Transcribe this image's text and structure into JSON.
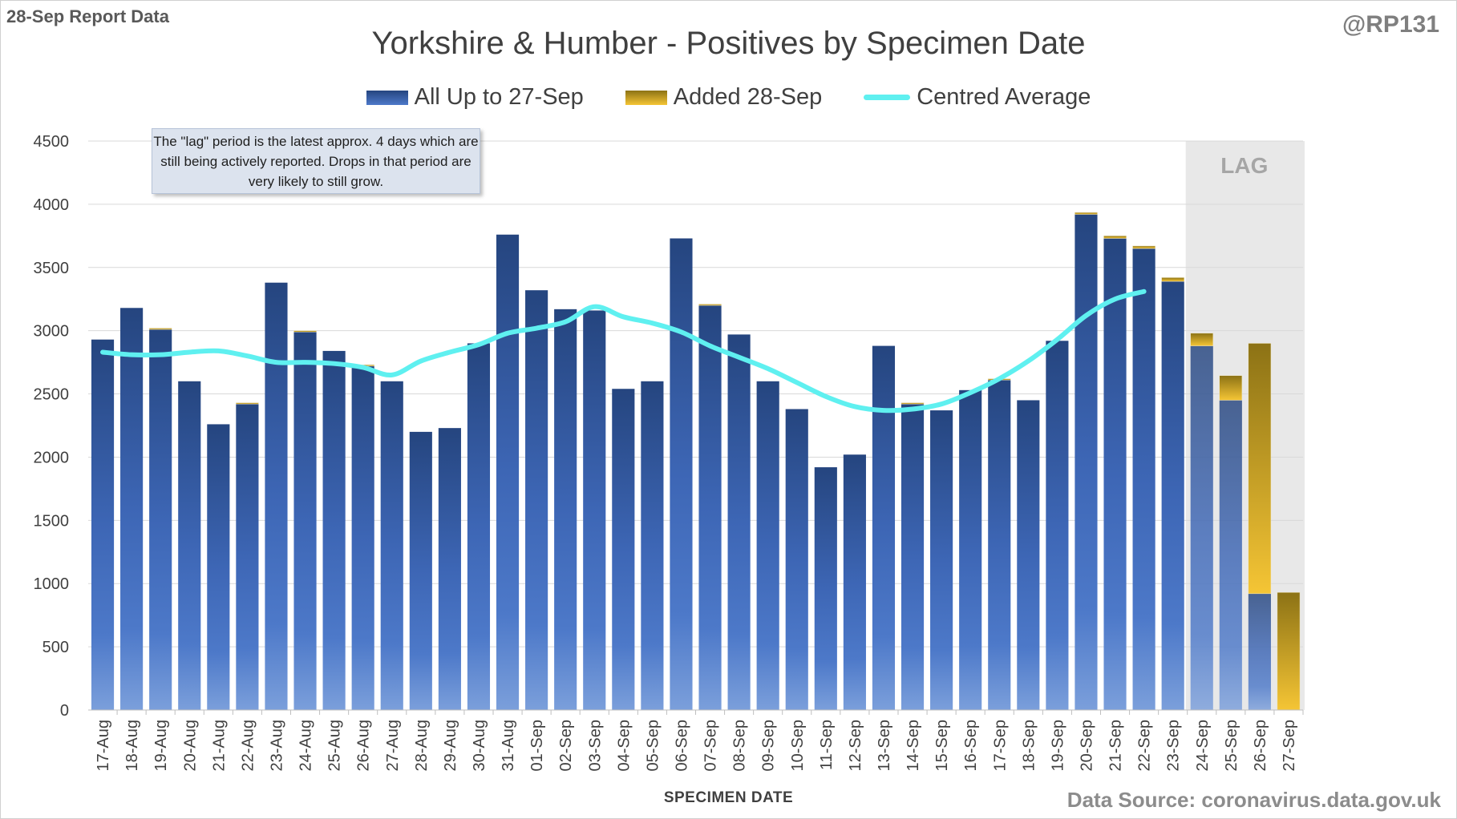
{
  "header": {
    "report_label": "28-Sep Report Data",
    "handle": "@RP131",
    "title": "Yorkshire & Humber - Positives by Specimen Date"
  },
  "legend": {
    "all_label": "All Up to 27-Sep",
    "added_label": "Added 28-Sep",
    "avg_label": "Centred Average"
  },
  "note_text": "The \"lag\" period is the latest approx. 4 days which are still being actively reported. Drops in that period are very likely to still grow.",
  "footer": {
    "x_title": "SPECIMEN DATE",
    "source": "Data Source: coronavirus.data.gov.uk"
  },
  "colors": {
    "base_top": "#25457f",
    "base_bottom": "#7b9fdb",
    "added_top": "#8c7215",
    "added_bottom": "#f5c535",
    "average": "#5ff0f0",
    "lag_shade": "#e8e8e8",
    "gridline": "#d9d9d9"
  },
  "chart_data": {
    "type": "bar",
    "stacked": true,
    "title": "Yorkshire & Humber - Positives by Specimen Date",
    "xlabel": "SPECIMEN DATE",
    "ylabel": "",
    "ylim": [
      0,
      4500
    ],
    "yticks": [
      0,
      500,
      1000,
      1500,
      2000,
      2500,
      3000,
      3500,
      4000,
      4500
    ],
    "grid": true,
    "legend_position": "top",
    "categories": [
      "17-Aug",
      "18-Aug",
      "19-Aug",
      "20-Aug",
      "21-Aug",
      "22-Aug",
      "23-Aug",
      "24-Aug",
      "25-Aug",
      "26-Aug",
      "27-Aug",
      "28-Aug",
      "29-Aug",
      "30-Aug",
      "31-Aug",
      "01-Sep",
      "02-Sep",
      "03-Sep",
      "04-Sep",
      "05-Sep",
      "06-Sep",
      "07-Sep",
      "08-Sep",
      "09-Sep",
      "10-Sep",
      "11-Sep",
      "12-Sep",
      "13-Sep",
      "14-Sep",
      "15-Sep",
      "16-Sep",
      "17-Sep",
      "18-Sep",
      "19-Sep",
      "20-Sep",
      "21-Sep",
      "22-Sep",
      "23-Sep",
      "24-Sep",
      "25-Sep",
      "26-Sep",
      "27-Sep"
    ],
    "series": [
      {
        "name": "All Up to 27-Sep",
        "values": [
          2930,
          3180,
          3010,
          2600,
          2260,
          2420,
          3380,
          2990,
          2840,
          2720,
          2600,
          2200,
          2230,
          2900,
          3760,
          3320,
          3170,
          3160,
          2540,
          2600,
          3730,
          3200,
          2970,
          2600,
          2380,
          1920,
          2020,
          2880,
          2420,
          2370,
          2530,
          2610,
          2450,
          2920,
          3920,
          3730,
          3650,
          3390,
          2880,
          2450,
          920,
          0
        ]
      },
      {
        "name": "Added 28-Sep",
        "values": [
          0,
          0,
          10,
          0,
          0,
          10,
          0,
          10,
          0,
          10,
          0,
          0,
          0,
          0,
          0,
          0,
          0,
          0,
          0,
          0,
          0,
          10,
          0,
          0,
          0,
          0,
          0,
          0,
          10,
          0,
          0,
          10,
          0,
          0,
          15,
          20,
          20,
          30,
          100,
          195,
          1980,
          930
        ]
      },
      {
        "name": "Centred Average",
        "type": "line",
        "values": [
          2830,
          2810,
          2810,
          2830,
          2840,
          2800,
          2750,
          2750,
          2740,
          2710,
          2650,
          2760,
          2830,
          2890,
          2980,
          3020,
          3070,
          3190,
          3110,
          3060,
          2990,
          2880,
          2790,
          2700,
          2590,
          2480,
          2400,
          2370,
          2380,
          2420,
          2510,
          2620,
          2760,
          2930,
          3120,
          3250,
          3310,
          null,
          null,
          null,
          null,
          null
        ]
      }
    ],
    "annotations": [
      "LAG"
    ],
    "lag_start_category": "24-Sep"
  }
}
